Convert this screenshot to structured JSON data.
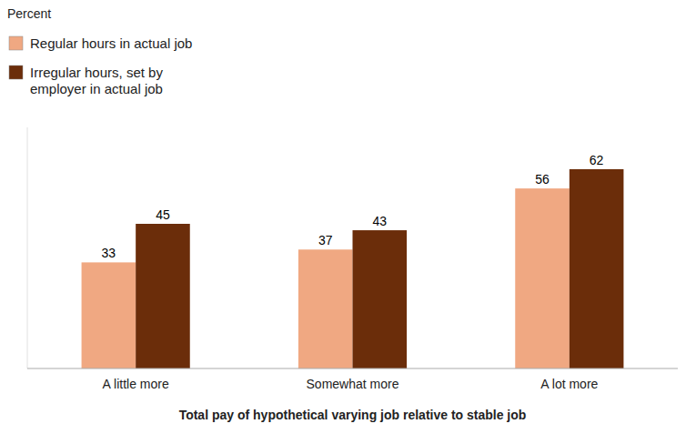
{
  "chart_data": {
    "type": "bar",
    "categories": [
      "A little more",
      "Somewhat more",
      "A lot more"
    ],
    "series": [
      {
        "name": "Regular hours in actual job",
        "color": "#F0A882",
        "values": [
          33,
          37,
          56
        ]
      },
      {
        "name": "Irregular hours, set by\nemployer in actual job",
        "color": "#6B2D0A",
        "values": [
          45,
          43,
          62
        ]
      }
    ],
    "xlabel": "Total pay of hypothetical varying job relative to stable job",
    "ylabel": "Percent",
    "ylim": [
      0,
      75
    ],
    "data_labels": true,
    "tick_labels": "x",
    "legend": "upper left",
    "grid": false
  }
}
